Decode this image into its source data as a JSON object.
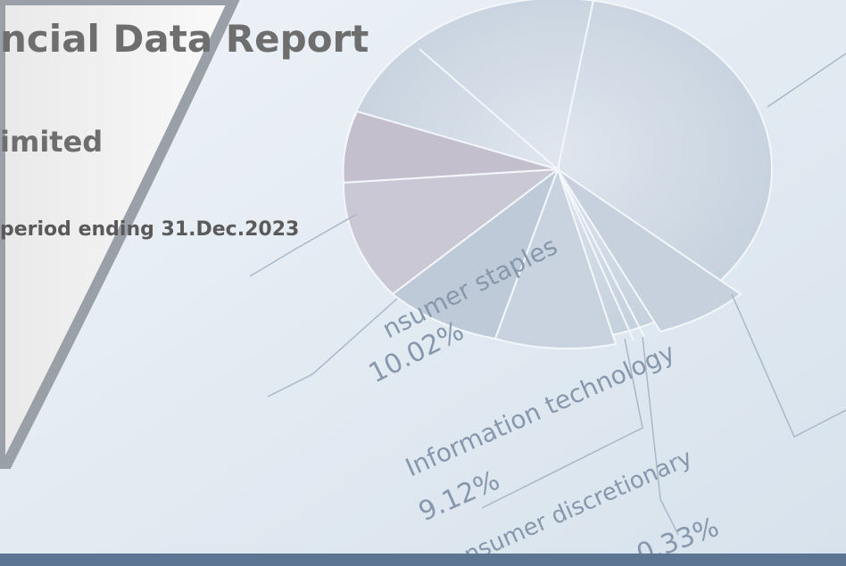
{
  "document": {
    "title": "ncial Data Report",
    "company": "imited",
    "period": "period ending 31.Dec.2023",
    "background_labels": [
      "nsumer staples",
      "10.02%",
      "Information technology",
      "9.12%",
      "nsumer discretionary",
      "0.33%"
    ]
  }
}
